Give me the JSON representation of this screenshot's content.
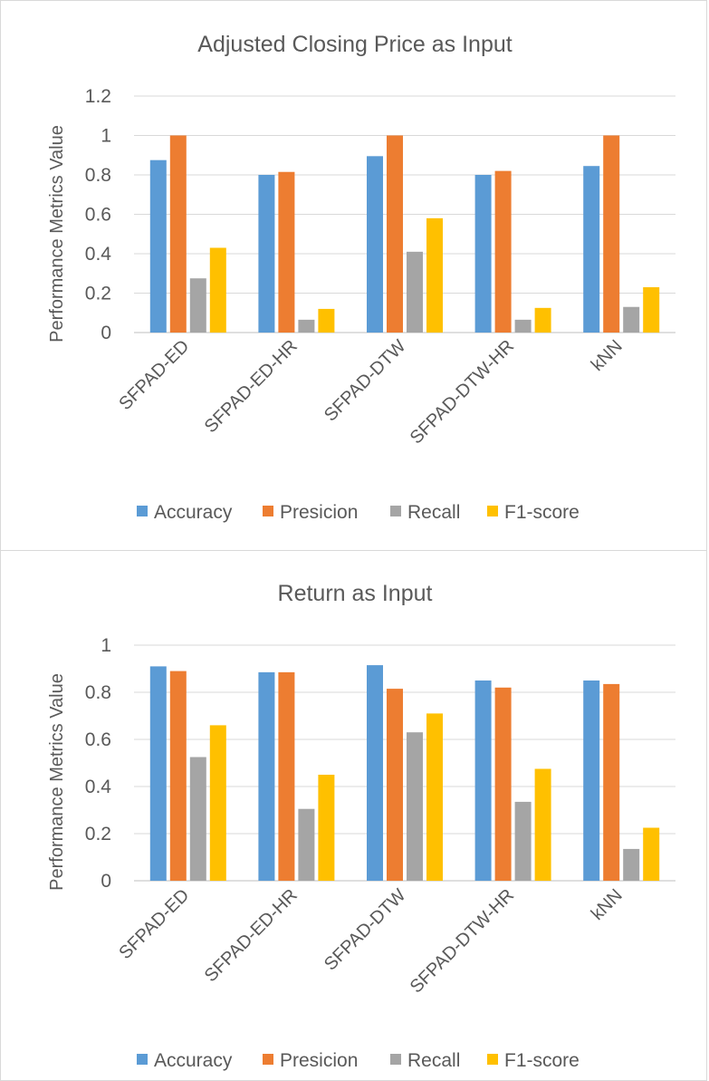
{
  "colors": {
    "accuracy": "#5b9bd5",
    "precision": "#ed7d31",
    "recall": "#a5a5a5",
    "f1": "#ffc000",
    "grid": "#d9d9d9",
    "text": "#595959"
  },
  "chart_data": [
    {
      "type": "bar",
      "title": "Adjusted Closing Price as Input",
      "ylabel": "Performance Metrics Value",
      "xlabel": "",
      "ylim": [
        0,
        1.2
      ],
      "yticks": [
        "0",
        "0.2",
        "0.4",
        "0.6",
        "0.8",
        "1",
        "1.2"
      ],
      "grid": true,
      "legend": "bottom",
      "categories": [
        "SFPAD-ED",
        "SFPAD-ED-HR",
        "SFPAD-DTW",
        "SFPAD-DTW-HR",
        "kNN"
      ],
      "series": [
        {
          "name": "Accuracy",
          "color_key": "accuracy",
          "values": [
            0.875,
            0.8,
            0.895,
            0.8,
            0.845
          ]
        },
        {
          "name": "Presicion",
          "color_key": "precision",
          "values": [
            1.0,
            0.815,
            1.0,
            0.82,
            1.0
          ]
        },
        {
          "name": "Recall",
          "color_key": "recall",
          "values": [
            0.275,
            0.065,
            0.41,
            0.065,
            0.13
          ]
        },
        {
          "name": "F1-score",
          "color_key": "f1",
          "values": [
            0.43,
            0.12,
            0.58,
            0.125,
            0.23
          ]
        }
      ]
    },
    {
      "type": "bar",
      "title": "Return as Input",
      "ylabel": "Performance Metrics Value",
      "xlabel": "",
      "ylim": [
        0,
        1
      ],
      "yticks": [
        "0",
        "0.2",
        "0.4",
        "0.6",
        "0.8",
        "1"
      ],
      "grid": true,
      "legend": "bottom",
      "categories": [
        "SFPAD-ED",
        "SFPAD-ED-HR",
        "SFPAD-DTW",
        "SFPAD-DTW-HR",
        "kNN"
      ],
      "series": [
        {
          "name": "Accuracy",
          "color_key": "accuracy",
          "values": [
            0.91,
            0.885,
            0.915,
            0.85,
            0.85
          ]
        },
        {
          "name": "Presicion",
          "color_key": "precision",
          "values": [
            0.89,
            0.885,
            0.815,
            0.82,
            0.835
          ]
        },
        {
          "name": "Recall",
          "color_key": "recall",
          "values": [
            0.525,
            0.305,
            0.63,
            0.335,
            0.135
          ]
        },
        {
          "name": "F1-score",
          "color_key": "f1",
          "values": [
            0.66,
            0.45,
            0.71,
            0.475,
            0.225
          ]
        }
      ]
    }
  ]
}
